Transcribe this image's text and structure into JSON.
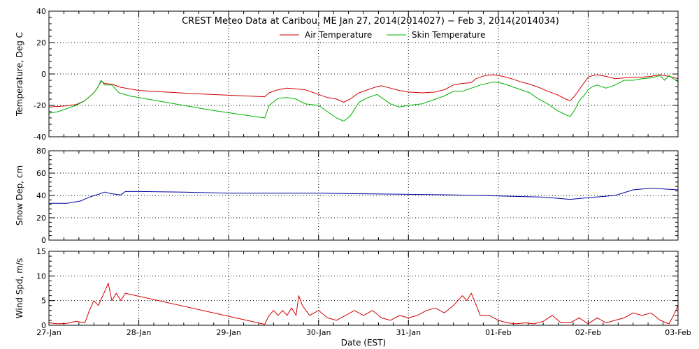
{
  "chart_data": {
    "type": "line",
    "title": "CREST Meteo Data at Caribou, ME   Jan 27, 2014(2014027) − Feb  3, 2014(2014034)",
    "xlabel": "Date (EST)",
    "x_range_days": [
      0,
      7
    ],
    "x_tick_labels": [
      "27-Jan",
      "28-Jan",
      "29-Jan",
      "30-Jan",
      "31-Jan",
      "01-Feb",
      "02-Feb",
      "03-Feb"
    ],
    "grid": true,
    "legend_position": "top-center",
    "panels": [
      {
        "ylabel": "Temperature, Deg C",
        "ylim": [
          -40,
          40
        ],
        "y_ticks": [
          -40,
          -20,
          0,
          20,
          40
        ],
        "series": [
          {
            "name": "Air Temperature",
            "color": "#d00000",
            "points": [
              [
                0,
                -21
              ],
              [
                0.15,
                -20.5
              ],
              [
                0.3,
                -19.5
              ],
              [
                0.4,
                -17
              ],
              [
                0.5,
                -12
              ],
              [
                0.55,
                -8
              ],
              [
                0.58,
                -4.5
              ],
              [
                0.62,
                -6
              ],
              [
                0.7,
                -6.5
              ],
              [
                0.8,
                -8.5
              ],
              [
                1.0,
                -10.5
              ],
              [
                1.3,
                -11.5
              ],
              [
                1.6,
                -12.5
              ],
              [
                2.0,
                -13.5
              ],
              [
                2.4,
                -14.5
              ],
              [
                2.45,
                -12
              ],
              [
                2.55,
                -10
              ],
              [
                2.65,
                -9
              ],
              [
                2.75,
                -9.5
              ],
              [
                2.85,
                -10
              ],
              [
                3.0,
                -13
              ],
              [
                3.1,
                -15
              ],
              [
                3.2,
                -16
              ],
              [
                3.28,
                -18
              ],
              [
                3.35,
                -16
              ],
              [
                3.45,
                -12
              ],
              [
                3.55,
                -10
              ],
              [
                3.65,
                -8
              ],
              [
                3.7,
                -7.5
              ],
              [
                3.8,
                -9
              ],
              [
                3.9,
                -10.5
              ],
              [
                4.0,
                -11.5
              ],
              [
                4.15,
                -12
              ],
              [
                4.3,
                -11.5
              ],
              [
                4.4,
                -10
              ],
              [
                4.5,
                -7
              ],
              [
                4.6,
                -6
              ],
              [
                4.7,
                -5.5
              ],
              [
                4.75,
                -3
              ],
              [
                4.85,
                -1
              ],
              [
                4.95,
                -0.5
              ],
              [
                5.05,
                -1.5
              ],
              [
                5.15,
                -3
              ],
              [
                5.25,
                -5
              ],
              [
                5.35,
                -6.5
              ],
              [
                5.45,
                -8.5
              ],
              [
                5.55,
                -11
              ],
              [
                5.65,
                -13
              ],
              [
                5.75,
                -16
              ],
              [
                5.8,
                -17
              ],
              [
                5.85,
                -14
              ],
              [
                5.9,
                -10
              ],
              [
                5.95,
                -6
              ],
              [
                6.0,
                -2
              ],
              [
                6.05,
                -1
              ],
              [
                6.1,
                -0.5
              ],
              [
                6.2,
                -1.5
              ],
              [
                6.3,
                -3
              ],
              [
                6.4,
                -2.5
              ],
              [
                6.5,
                -2
              ],
              [
                6.6,
                -2
              ],
              [
                6.7,
                -1.5
              ],
              [
                6.8,
                -0.5
              ],
              [
                6.9,
                -1.5
              ],
              [
                7.0,
                -3
              ]
            ]
          },
          {
            "name": "Skin Temperature",
            "color": "#00b000",
            "points": [
              [
                0,
                -25
              ],
              [
                0.1,
                -24
              ],
              [
                0.2,
                -22
              ],
              [
                0.3,
                -20
              ],
              [
                0.4,
                -17
              ],
              [
                0.5,
                -12
              ],
              [
                0.55,
                -8
              ],
              [
                0.58,
                -4
              ],
              [
                0.62,
                -7
              ],
              [
                0.7,
                -7
              ],
              [
                0.78,
                -12
              ],
              [
                0.9,
                -14
              ],
              [
                1.2,
                -17
              ],
              [
                1.5,
                -20
              ],
              [
                1.8,
                -23
              ],
              [
                2.1,
                -25.5
              ],
              [
                2.4,
                -28
              ],
              [
                2.45,
                -20
              ],
              [
                2.55,
                -15.5
              ],
              [
                2.65,
                -15
              ],
              [
                2.75,
                -16
              ],
              [
                2.85,
                -19
              ],
              [
                3.0,
                -20
              ],
              [
                3.1,
                -24
              ],
              [
                3.2,
                -28
              ],
              [
                3.28,
                -30
              ],
              [
                3.35,
                -27
              ],
              [
                3.45,
                -18
              ],
              [
                3.55,
                -15
              ],
              [
                3.65,
                -13
              ],
              [
                3.7,
                -15
              ],
              [
                3.8,
                -19
              ],
              [
                3.9,
                -21
              ],
              [
                4.0,
                -20
              ],
              [
                4.15,
                -19
              ],
              [
                4.3,
                -16
              ],
              [
                4.4,
                -14
              ],
              [
                4.5,
                -11
              ],
              [
                4.6,
                -11
              ],
              [
                4.7,
                -9
              ],
              [
                4.8,
                -7
              ],
              [
                4.95,
                -5
              ],
              [
                5.05,
                -6
              ],
              [
                5.15,
                -8
              ],
              [
                5.25,
                -10
              ],
              [
                5.35,
                -12
              ],
              [
                5.45,
                -16
              ],
              [
                5.55,
                -19
              ],
              [
                5.65,
                -23
              ],
              [
                5.75,
                -26
              ],
              [
                5.8,
                -27
              ],
              [
                5.85,
                -23
              ],
              [
                5.9,
                -17
              ],
              [
                5.95,
                -14
              ],
              [
                6.0,
                -10
              ],
              [
                6.05,
                -8
              ],
              [
                6.1,
                -7
              ],
              [
                6.2,
                -9
              ],
              [
                6.3,
                -7
              ],
              [
                6.4,
                -4
              ],
              [
                6.5,
                -4
              ],
              [
                6.6,
                -3
              ],
              [
                6.7,
                -2.5
              ],
              [
                6.8,
                -1
              ],
              [
                6.85,
                -4
              ],
              [
                6.9,
                -1
              ],
              [
                7.0,
                -5
              ]
            ]
          }
        ]
      },
      {
        "ylabel": "Snow Dep, cm",
        "ylim": [
          0,
          80
        ],
        "y_ticks": [
          0,
          20,
          40,
          60,
          80
        ],
        "series": [
          {
            "name": "Snow Depth",
            "color": "#0000a0",
            "points": [
              [
                0,
                33
              ],
              [
                0.2,
                33
              ],
              [
                0.35,
                35
              ],
              [
                0.45,
                38.5
              ],
              [
                0.55,
                41
              ],
              [
                0.62,
                43
              ],
              [
                0.7,
                41.5
              ],
              [
                0.8,
                40.5
              ],
              [
                0.85,
                43.5
              ],
              [
                1.0,
                43.5
              ],
              [
                1.5,
                43
              ],
              [
                2.0,
                42
              ],
              [
                2.5,
                42
              ],
              [
                3.0,
                42
              ],
              [
                3.5,
                41.5
              ],
              [
                4.0,
                41
              ],
              [
                4.5,
                40.5
              ],
              [
                5.0,
                39.5
              ],
              [
                5.5,
                38.5
              ],
              [
                5.8,
                36.5
              ],
              [
                6.0,
                38
              ],
              [
                6.3,
                40
              ],
              [
                6.5,
                45
              ],
              [
                6.7,
                46.5
              ],
              [
                7.0,
                45
              ]
            ]
          }
        ]
      },
      {
        "ylabel": "Wind Spd, m/s",
        "ylim": [
          0,
          15
        ],
        "y_ticks": [
          0,
          5,
          10,
          15
        ],
        "series": [
          {
            "name": "Wind Speed",
            "color": "#d00000",
            "points": [
              [
                0,
                0.5
              ],
              [
                0.1,
                0.3
              ],
              [
                0.2,
                0.4
              ],
              [
                0.3,
                0.8
              ],
              [
                0.4,
                0.5
              ],
              [
                0.45,
                3
              ],
              [
                0.5,
                5
              ],
              [
                0.55,
                4
              ],
              [
                0.6,
                6
              ],
              [
                0.66,
                8.5
              ],
              [
                0.7,
                5
              ],
              [
                0.75,
                6.5
              ],
              [
                0.8,
                5
              ],
              [
                0.85,
                6.5
              ],
              [
                2.4,
                0.2
              ],
              [
                2.45,
                2
              ],
              [
                2.5,
                3
              ],
              [
                2.55,
                2
              ],
              [
                2.6,
                3
              ],
              [
                2.65,
                2
              ],
              [
                2.7,
                3.5
              ],
              [
                2.75,
                2
              ],
              [
                2.78,
                6
              ],
              [
                2.82,
                4
              ],
              [
                2.9,
                2
              ],
              [
                3.0,
                3
              ],
              [
                3.1,
                1.5
              ],
              [
                3.2,
                1
              ],
              [
                3.3,
                2
              ],
              [
                3.4,
                3
              ],
              [
                3.5,
                2
              ],
              [
                3.6,
                3
              ],
              [
                3.7,
                1.5
              ],
              [
                3.8,
                1
              ],
              [
                3.9,
                2
              ],
              [
                4.0,
                1.5
              ],
              [
                4.1,
                2
              ],
              [
                4.2,
                3
              ],
              [
                4.3,
                3.5
              ],
              [
                4.4,
                2.5
              ],
              [
                4.5,
                4
              ],
              [
                4.55,
                5
              ],
              [
                4.6,
                6
              ],
              [
                4.65,
                5
              ],
              [
                4.7,
                6.5
              ],
              [
                4.8,
                2
              ],
              [
                4.9,
                2
              ],
              [
                5.0,
                1
              ],
              [
                5.1,
                0.5
              ],
              [
                5.2,
                0.3
              ],
              [
                5.3,
                0.5
              ],
              [
                5.4,
                0.3
              ],
              [
                5.5,
                0.8
              ],
              [
                5.6,
                2
              ],
              [
                5.7,
                0.5
              ],
              [
                5.8,
                0.5
              ],
              [
                5.9,
                1.5
              ],
              [
                6.0,
                0.3
              ],
              [
                6.1,
                1.5
              ],
              [
                6.2,
                0.5
              ],
              [
                6.3,
                1
              ],
              [
                6.4,
                1.5
              ],
              [
                6.5,
                2.5
              ],
              [
                6.6,
                2
              ],
              [
                6.7,
                2.5
              ],
              [
                6.8,
                1
              ],
              [
                6.9,
                0.3
              ],
              [
                6.95,
                2
              ],
              [
                7.0,
                4
              ]
            ]
          }
        ]
      }
    ]
  }
}
